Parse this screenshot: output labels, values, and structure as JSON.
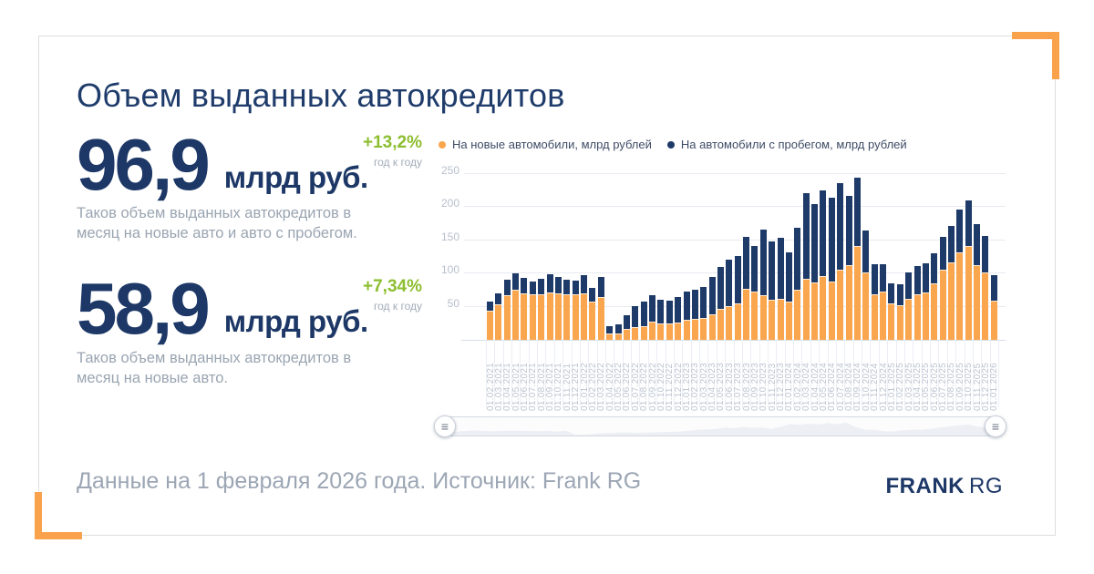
{
  "card": {
    "title": "Объем выданных автокредитов",
    "stats": [
      {
        "value": "96,9",
        "unit": "млрд руб.",
        "delta": "+13,2%",
        "delta_note": "год к году",
        "desc": "Таков объем выданных автокредитов в месяц на новые авто и авто с пробегом."
      },
      {
        "value": "58,9",
        "unit": "млрд руб.",
        "delta": "+7,34%",
        "delta_note": "год к году",
        "desc": "Таков объем выданных автокредитов в месяц на новые авто."
      }
    ],
    "footer": {
      "note": "Данные на 1 февраля 2026 года. Источник: Frank RG",
      "logo_primary": "FRANK",
      "logo_secondary": "RG"
    }
  },
  "colors": {
    "navy": "#1E3A68",
    "orange": "#F9A64E",
    "green": "#8CBE2F",
    "accent_bracket": "#F9A24B",
    "text_gray": "#9AA5B1",
    "axis_label": "#B7BECC",
    "gridline": "#E7EAF1"
  },
  "scrollbar": {
    "grip_icon": "≡"
  },
  "chart_data": {
    "type": "bar",
    "stacked": true,
    "legend_position": "top",
    "grid": true,
    "ylim": [
      0,
      250
    ],
    "y_ticks": [
      50,
      100,
      150,
      200,
      250
    ],
    "legend": [
      {
        "label": "На новые автомобили, млрд рублей",
        "color": "#F9A64E"
      },
      {
        "label": "На автомобили с пробегом, млрд рублей",
        "color": "#1E3A68"
      }
    ],
    "categories": [
      "01.02.2021",
      "01.03.2021",
      "01.04.2021",
      "01.05.2021",
      "01.06.2021",
      "01.07.2021",
      "01.08.2021",
      "01.09.2021",
      "01.10.2021",
      "01.11.2021",
      "01.12.2021",
      "01.01.2022",
      "01.02.2022",
      "01.03.2022",
      "01.04.2022",
      "01.05.2022",
      "01.06.2022",
      "01.07.2022",
      "01.08.2022",
      "01.09.2022",
      "01.10.2022",
      "01.11.2022",
      "01.12.2022",
      "01.01.2023",
      "01.02.2023",
      "01.03.2023",
      "01.04.2023",
      "01.05.2023",
      "01.06.2023",
      "01.07.2023",
      "01.08.2023",
      "01.09.2023",
      "01.10.2023",
      "01.11.2023",
      "01.12.2023",
      "01.01.2024",
      "01.02.2024",
      "01.03.2024",
      "01.04.2024",
      "01.05.2024",
      "01.06.2024",
      "01.07.2024",
      "01.08.2024",
      "01.09.2024",
      "01.10.2024",
      "01.11.2024",
      "01.12.2024",
      "01.01.2025",
      "01.02.2025",
      "01.03.2025",
      "01.04.2025",
      "01.05.2025",
      "01.06.2025",
      "01.07.2025",
      "01.08.2025",
      "01.09.2025",
      "01.10.2025",
      "01.11.2025",
      "01.12.2025",
      "01.01.2026"
    ],
    "series": [
      {
        "name": "На новые автомобили, млрд рублей",
        "values": [
          44,
          54,
          67,
          75,
          70,
          69,
          69,
          71,
          70,
          69,
          68,
          70,
          57,
          65,
          10,
          9,
          16,
          19,
          21,
          27,
          24,
          24,
          26,
          30,
          31,
          33,
          39,
          46,
          51,
          55,
          77,
          73,
          67,
          60,
          62,
          58,
          75,
          92,
          87,
          96,
          88,
          105,
          113,
          141,
          102,
          69,
          72,
          55,
          52,
          61,
          69,
          71,
          85,
          106,
          116,
          131,
          141,
          112,
          102,
          58.9
        ]
      },
      {
        "name": "На автомобили с пробегом, млрд рублей",
        "values": [
          14,
          16,
          23,
          25,
          23,
          19,
          23,
          28,
          25,
          22,
          21,
          27,
          21,
          30,
          10,
          15,
          21,
          32,
          36,
          40,
          36,
          35,
          39,
          42,
          44,
          46,
          55,
          64,
          69,
          71,
          78,
          68,
          99,
          88,
          92,
          73,
          94,
          129,
          117,
          129,
          126,
          130,
          104,
          103,
          63,
          45,
          42,
          30,
          31,
          41,
          42,
          44,
          45,
          49,
          55,
          65,
          68,
          62,
          54,
          38
        ]
      }
    ]
  }
}
